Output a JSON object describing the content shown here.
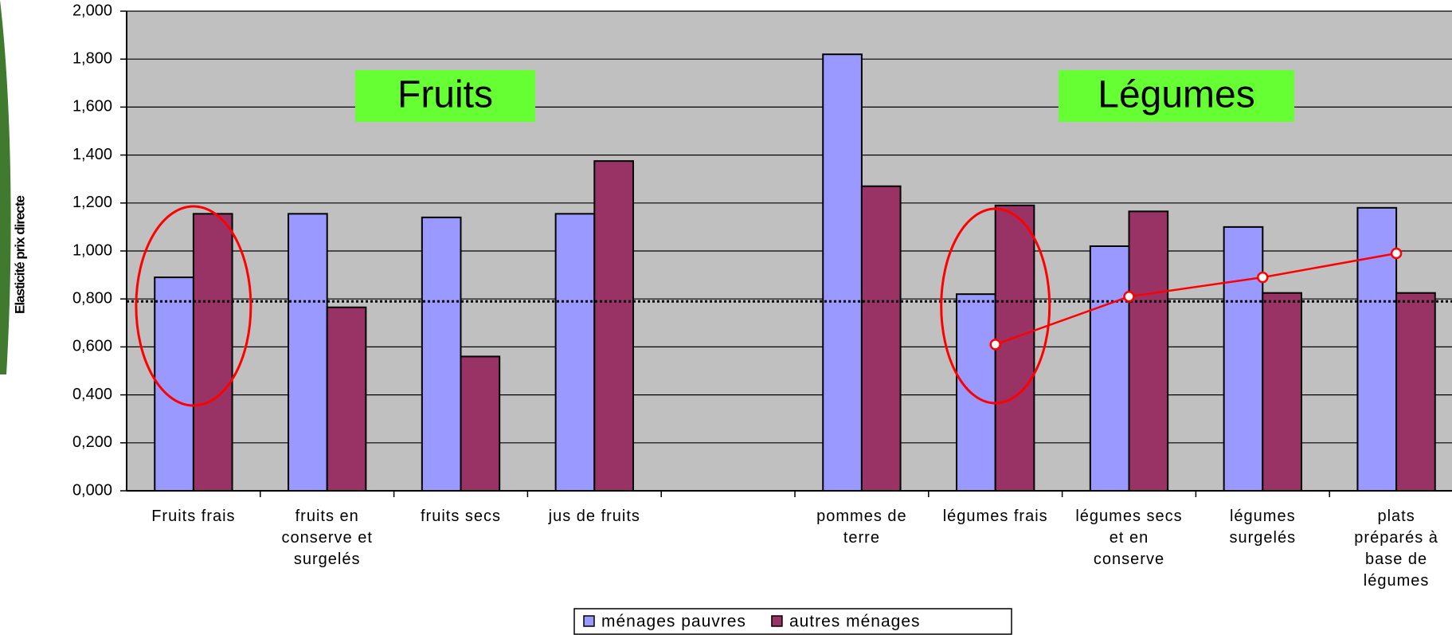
{
  "chart_data": {
    "type": "bar",
    "y_label": "Elasticité prix directe",
    "categories": [
      "Fruits frais",
      "fruits en conserve et surgelés",
      "fruits secs",
      "jus de fruits",
      null,
      "pommes de terre",
      "légumes frais",
      "légumes secs et en conserve",
      "légumes surgelés",
      "plats préparés à base de légumes"
    ],
    "series": [
      {
        "name": "ménages pauvres",
        "color": "#9999ff",
        "values": [
          0.89,
          1.155,
          1.14,
          1.155,
          null,
          1.82,
          0.82,
          1.02,
          1.1,
          1.18
        ]
      },
      {
        "name": "autres ménages",
        "color": "#993366",
        "values": [
          1.155,
          0.765,
          0.56,
          1.375,
          null,
          1.27,
          1.19,
          1.165,
          0.825,
          0.825
        ]
      }
    ],
    "trend_line": {
      "color": "#ff0000",
      "values": [
        null,
        null,
        null,
        null,
        null,
        null,
        0.61,
        0.81,
        0.89,
        0.99
      ]
    },
    "reference_line": 0.79,
    "annotations": [
      "Fruits",
      "Légumes"
    ],
    "ylim": [
      0,
      2
    ],
    "yticks": [
      {
        "value": 0,
        "label": "0,000"
      },
      {
        "value": 0.2,
        "label": "0,200"
      },
      {
        "value": 0.4,
        "label": "0,400"
      },
      {
        "value": 0.6,
        "label": "0,600"
      },
      {
        "value": 0.8,
        "label": "0,800"
      },
      {
        "value": 1,
        "label": "1,000"
      },
      {
        "value": 1.2,
        "label": "1,200"
      },
      {
        "value": 1.4,
        "label": "1,400"
      },
      {
        "value": 1.6,
        "label": "1,600"
      },
      {
        "value": 1.8,
        "label": "1,800"
      },
      {
        "value": 2,
        "label": "2,000"
      }
    ],
    "grid": true,
    "legend": "bottom"
  }
}
